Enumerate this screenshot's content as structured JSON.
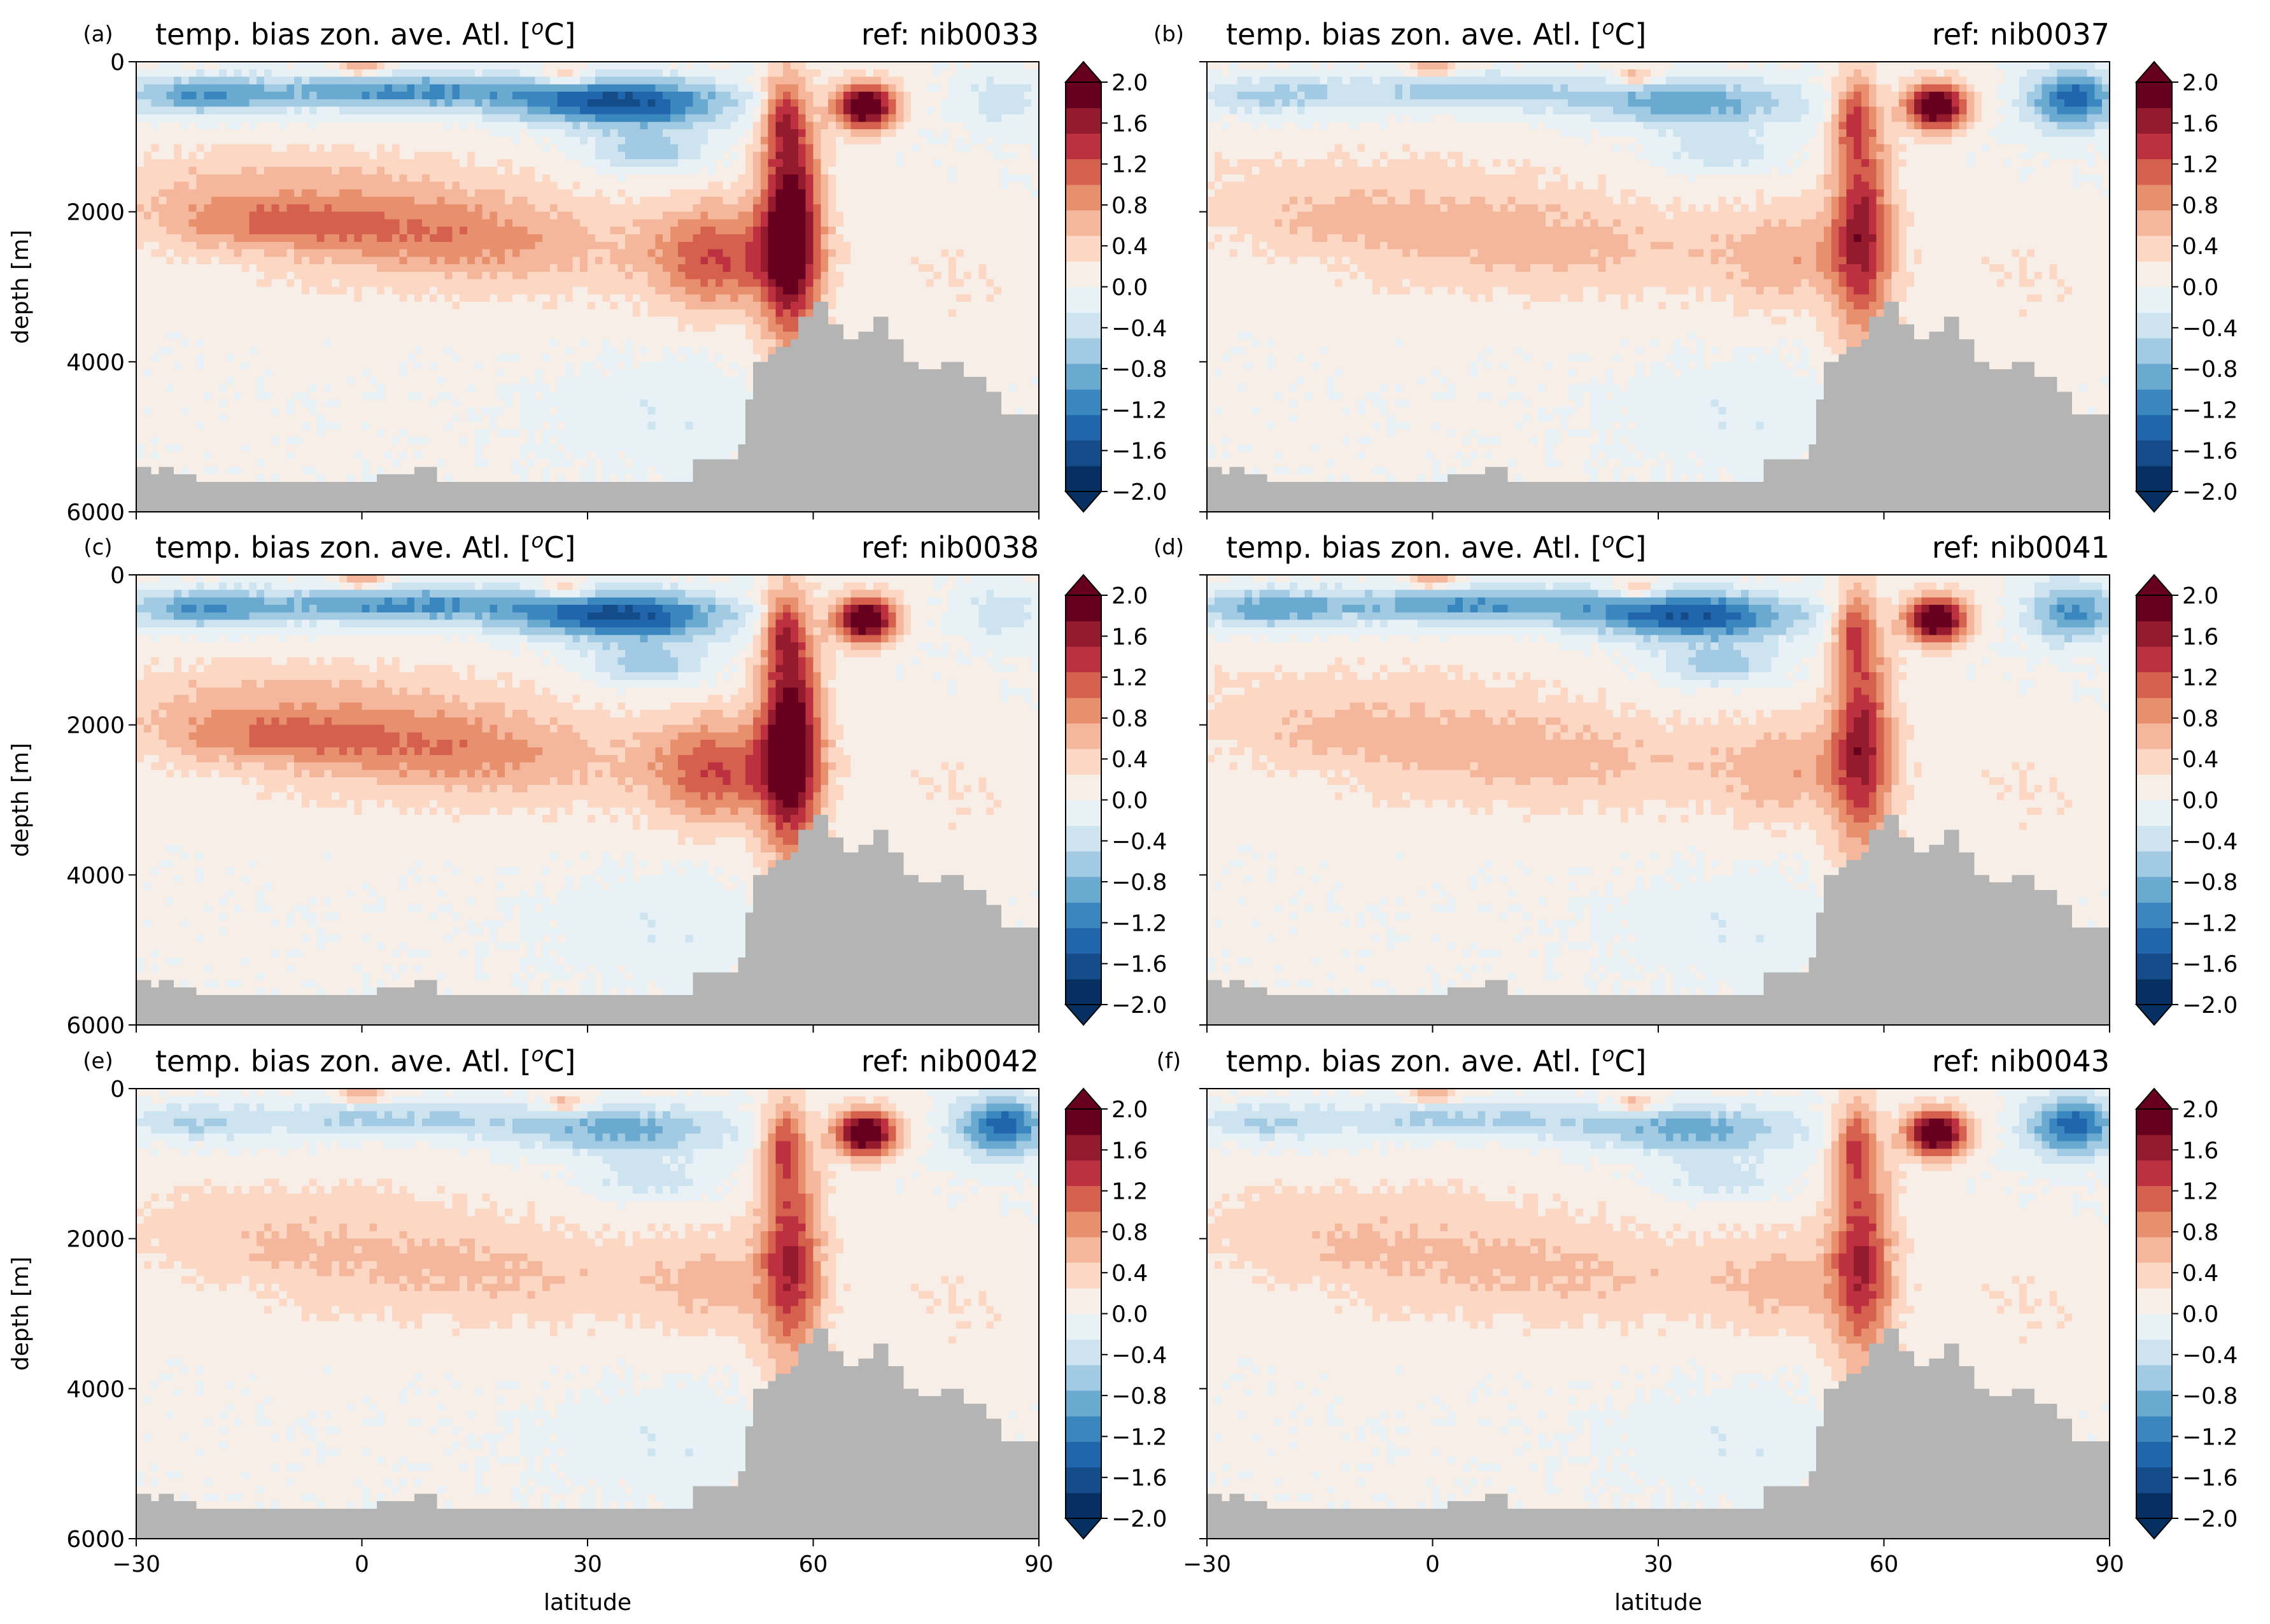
{
  "figure": {
    "xlabel": "latitude",
    "ylabel": "depth [m]",
    "colors": {
      "land": "#b4b4b4",
      "cmap": [
        "#053061",
        "#134c89",
        "#2166ac",
        "#3a87bf",
        "#6aaad1",
        "#a2cbe3",
        "#cde3ef",
        "#e8f1f5",
        "#f8eee8",
        "#fbd7c4",
        "#f5b79b",
        "#e8906d",
        "#d4604d",
        "#bc3040",
        "#941b2e",
        "#67001f"
      ]
    },
    "colorbar_ticks": [
      "2.0",
      "1.6",
      "1.2",
      "0.8",
      "0.4",
      "0.0",
      "−0.4",
      "−0.8",
      "−1.2",
      "−1.6",
      "−2.0"
    ],
    "xticks": [
      "−30",
      "0",
      "30",
      "60",
      "90"
    ],
    "yticks": [
      "0",
      "2000",
      "4000",
      "6000"
    ]
  },
  "chart_data": [
    {
      "type": "heatmap",
      "panel": "(a)",
      "title": "temp. bias zon. ave. Atl. [°C]",
      "title_sup": "o",
      "title_unit": "C",
      "ref": "ref: nib0033",
      "xlim": [
        -30,
        90
      ],
      "ylim": [
        6000,
        0
      ],
      "clim": [
        -2.0,
        2.0
      ],
      "colorbar_step": 0.4,
      "extend": "both",
      "land_color": "gray",
      "cold_upper": 1.0,
      "warm_deep": 1.0,
      "arctic_cold": 0.3,
      "labels": {
        "x": false,
        "y": true
      }
    },
    {
      "type": "heatmap",
      "panel": "(b)",
      "title": "temp. bias zon. ave. Atl. [°C]",
      "title_sup": "o",
      "title_unit": "C",
      "ref": "ref: nib0037",
      "xlim": [
        -30,
        90
      ],
      "ylim": [
        6000,
        0
      ],
      "clim": [
        -2.0,
        2.0
      ],
      "colorbar_step": 0.4,
      "extend": "both",
      "land_color": "gray",
      "cold_upper": 0.6,
      "warm_deep": 0.45,
      "arctic_cold": 0.9,
      "labels": {
        "x": false,
        "y": false
      }
    },
    {
      "type": "heatmap",
      "panel": "(c)",
      "title": "temp. bias zon. ave. Atl. [°C]",
      "title_sup": "o",
      "title_unit": "C",
      "ref": "ref: nib0038",
      "xlim": [
        -30,
        90
      ],
      "ylim": [
        6000,
        0
      ],
      "clim": [
        -2.0,
        2.0
      ],
      "colorbar_step": 0.4,
      "extend": "both",
      "land_color": "gray",
      "cold_upper": 1.0,
      "warm_deep": 1.0,
      "arctic_cold": 0.3,
      "labels": {
        "x": false,
        "y": true
      }
    },
    {
      "type": "heatmap",
      "panel": "(d)",
      "title": "temp. bias zon. ave. Atl. [°C]",
      "title_sup": "o",
      "title_unit": "C",
      "ref": "ref: nib0041",
      "xlim": [
        -30,
        90
      ],
      "ylim": [
        6000,
        0
      ],
      "clim": [
        -2.0,
        2.0
      ],
      "colorbar_step": 0.4,
      "extend": "both",
      "land_color": "gray",
      "cold_upper": 0.95,
      "warm_deep": 0.45,
      "arctic_cold": 0.7,
      "labels": {
        "x": false,
        "y": false
      }
    },
    {
      "type": "heatmap",
      "panel": "(e)",
      "title": "temp. bias zon. ave. Atl. [°C]",
      "title_sup": "o",
      "title_unit": "C",
      "ref": "ref: nib0042",
      "xlim": [
        -30,
        90
      ],
      "ylim": [
        6000,
        0
      ],
      "clim": [
        -2.0,
        2.0
      ],
      "colorbar_step": 0.4,
      "extend": "both",
      "land_color": "gray",
      "cold_upper": 0.55,
      "warm_deep": 0.35,
      "arctic_cold": 0.9,
      "labels": {
        "x": true,
        "y": true
      }
    },
    {
      "type": "heatmap",
      "panel": "(f)",
      "title": "temp. bias zon. ave. Atl. [°C]",
      "title_sup": "o",
      "title_unit": "C",
      "ref": "ref: nib0043",
      "xlim": [
        -30,
        90
      ],
      "ylim": [
        6000,
        0
      ],
      "clim": [
        -2.0,
        2.0
      ],
      "colorbar_step": 0.4,
      "extend": "both",
      "land_color": "gray",
      "cold_upper": 0.55,
      "warm_deep": 0.35,
      "arctic_cold": 0.9,
      "labels": {
        "x": true,
        "y": false
      }
    }
  ]
}
